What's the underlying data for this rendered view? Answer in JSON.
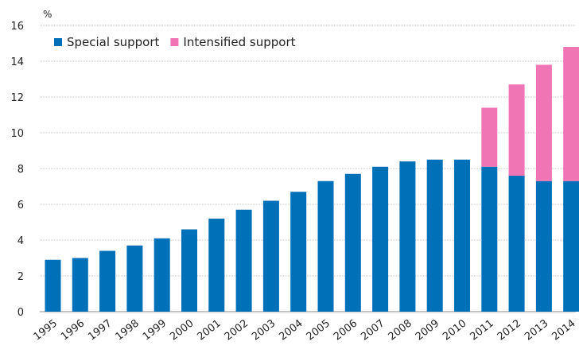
{
  "chart_data": {
    "type": "bar",
    "stacked": true,
    "unit_label": "%",
    "title": "",
    "xlabel": "",
    "ylabel": "",
    "ylim": [
      0,
      16
    ],
    "yticks": [
      0,
      2,
      4,
      6,
      8,
      10,
      12,
      14,
      16
    ],
    "grid": true,
    "legend_position": "top-left",
    "categories": [
      "1995",
      "1996",
      "1997",
      "1998",
      "1999",
      "2000",
      "2001",
      "2002",
      "2003",
      "2004",
      "2005",
      "2006",
      "2007",
      "2008",
      "2009",
      "2010",
      "2011",
      "2012",
      "2013",
      "2014"
    ],
    "series": [
      {
        "name": "Special support",
        "color": "#0070b8",
        "values": [
          2.9,
          3.0,
          3.4,
          3.7,
          4.1,
          4.6,
          5.2,
          5.7,
          6.2,
          6.7,
          7.3,
          7.7,
          8.1,
          8.4,
          8.5,
          8.5,
          8.1,
          7.6,
          7.3,
          7.3
        ]
      },
      {
        "name": "Intensified support",
        "color": "#f075b4",
        "values": [
          0,
          0,
          0,
          0,
          0,
          0,
          0,
          0,
          0,
          0,
          0,
          0,
          0,
          0,
          0,
          0,
          3.3,
          5.1,
          6.5,
          7.5
        ]
      }
    ]
  }
}
